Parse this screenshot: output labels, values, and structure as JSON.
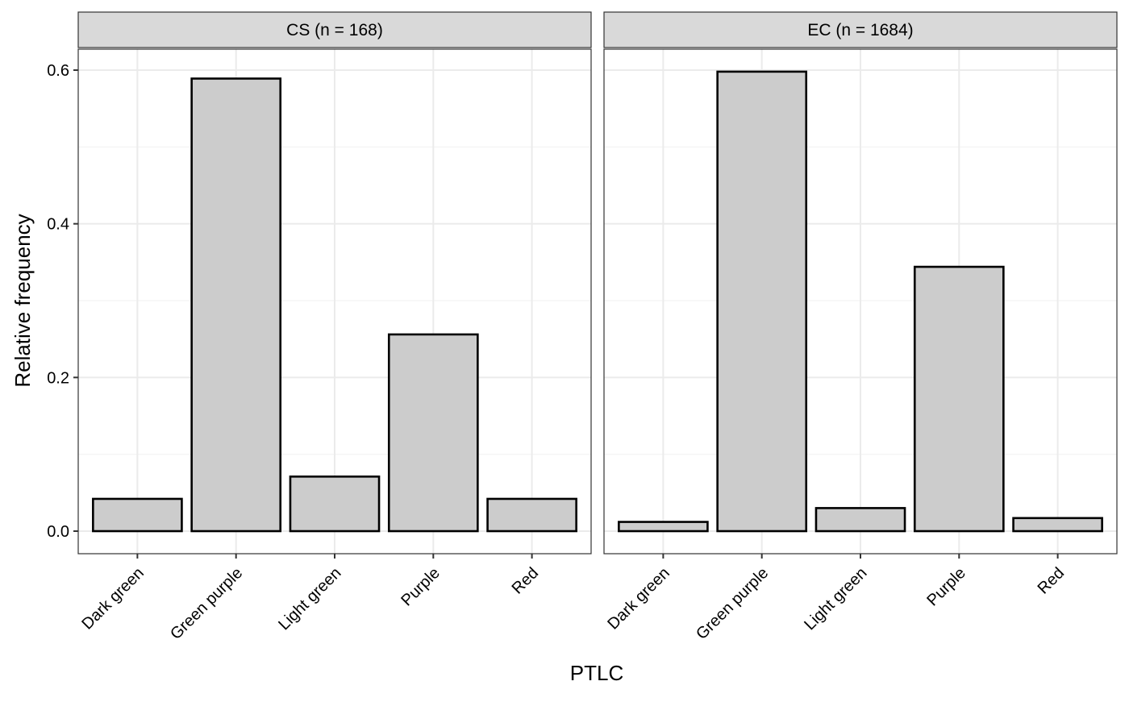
{
  "chart_data": {
    "type": "bar",
    "layout": "faceted",
    "xlabel": "PTLC",
    "ylabel": "Relative frequency",
    "ylim": [
      -0.03,
      0.63
    ],
    "yticks": [
      0.0,
      0.2,
      0.4,
      0.6
    ],
    "ytick_labels": [
      "0.0",
      "0.2",
      "0.4",
      "0.6"
    ],
    "grid": true,
    "theme": "bw",
    "colors": {
      "bar_fill": "#cccccc",
      "bar_stroke": "#000000",
      "strip_fill": "#d9d9d9",
      "grid_major": "#ebebeb",
      "grid_minor": "#f3f3f3",
      "panel_border": "#333333",
      "text": "#000000"
    },
    "categories": [
      "Dark green",
      "Green purple",
      "Light green",
      "Purple",
      "Red"
    ],
    "facets": [
      {
        "label": "CS (n = 168)",
        "values": [
          0.042,
          0.589,
          0.071,
          0.256,
          0.042
        ]
      },
      {
        "label": "EC (n = 1684)",
        "values": [
          0.012,
          0.598,
          0.03,
          0.344,
          0.017
        ]
      }
    ]
  }
}
